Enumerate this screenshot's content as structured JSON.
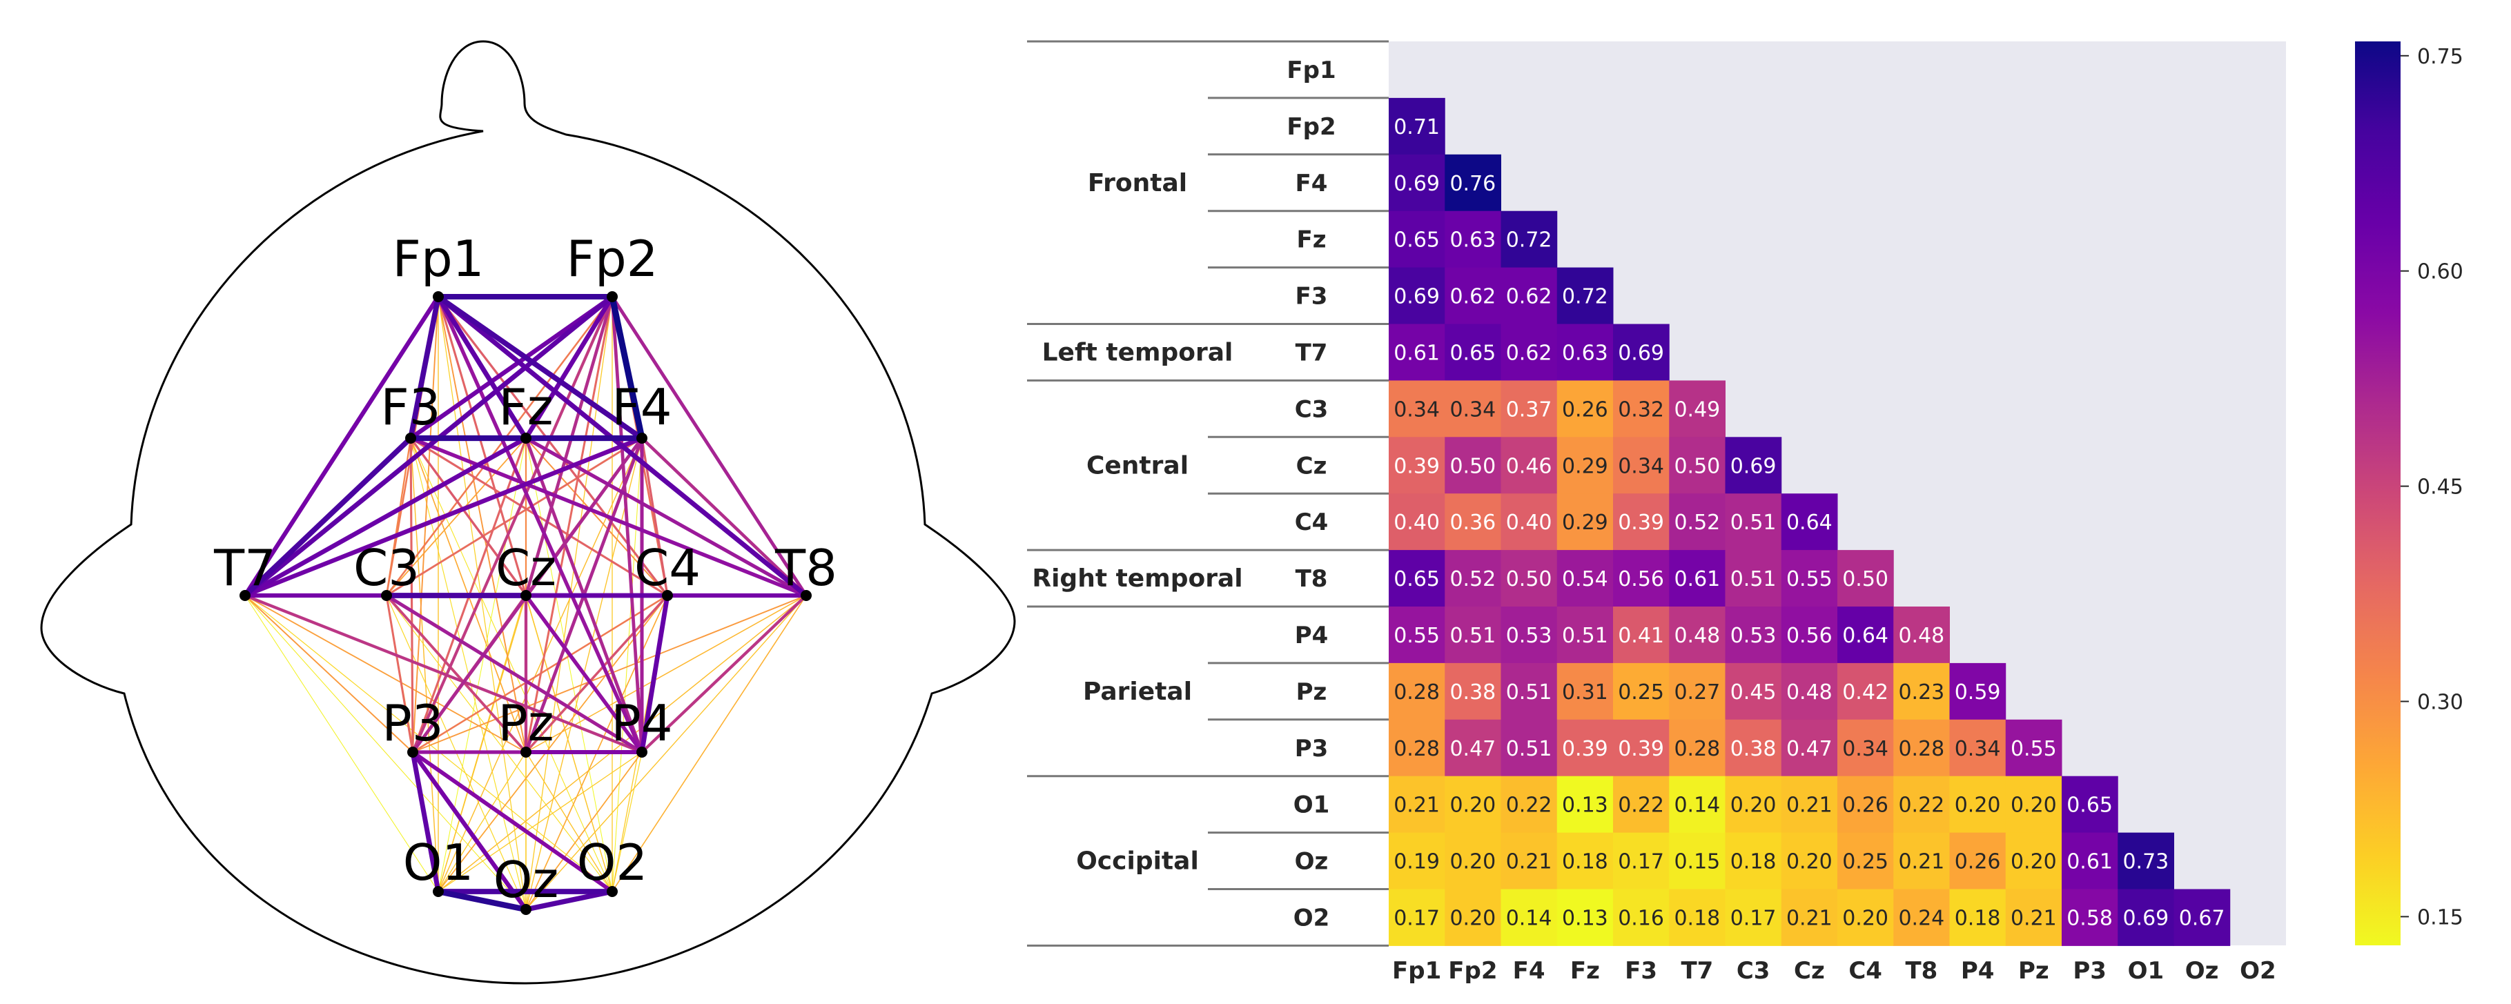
{
  "chart_data": [
    {
      "type": "network",
      "title": "",
      "nodes": [
        "Fp1",
        "Fp2",
        "F3",
        "Fz",
        "F4",
        "T7",
        "C3",
        "Cz",
        "C4",
        "T8",
        "P3",
        "Pz",
        "P4",
        "O1",
        "Oz",
        "O2"
      ],
      "edges_from": "heatmap values (line color and width encode connectivity strength)"
    },
    {
      "type": "heatmap",
      "title": "",
      "rows": [
        "Fp1",
        "Fp2",
        "F4",
        "Fz",
        "F3",
        "T7",
        "C3",
        "Cz",
        "C4",
        "T8",
        "P4",
        "Pz",
        "P3",
        "O1",
        "Oz",
        "O2"
      ],
      "columns": [
        "Fp1",
        "Fp2",
        "F4",
        "Fz",
        "F3",
        "T7",
        "C3",
        "Cz",
        "C4",
        "T8",
        "P4",
        "Pz",
        "P3",
        "O1",
        "Oz",
        "O2"
      ],
      "groups": [
        {
          "name": "Frontal",
          "rows": [
            "Fp1",
            "Fp2",
            "F4",
            "Fz",
            "F3"
          ]
        },
        {
          "name": "Left temporal",
          "rows": [
            "T7"
          ]
        },
        {
          "name": "Central",
          "rows": [
            "C3",
            "Cz",
            "C4"
          ]
        },
        {
          "name": "Right temporal",
          "rows": [
            "T8"
          ]
        },
        {
          "name": "Parietal",
          "rows": [
            "P4",
            "Pz",
            "P3"
          ]
        },
        {
          "name": "Occipital",
          "rows": [
            "O1",
            "Oz",
            "O2"
          ]
        }
      ],
      "values": [
        [],
        [
          0.71
        ],
        [
          0.69,
          0.76
        ],
        [
          0.65,
          0.63,
          0.72
        ],
        [
          0.69,
          0.62,
          0.62,
          0.72
        ],
        [
          0.61,
          0.65,
          0.62,
          0.63,
          0.69
        ],
        [
          0.34,
          0.34,
          0.37,
          0.26,
          0.32,
          0.49
        ],
        [
          0.39,
          0.5,
          0.46,
          0.29,
          0.34,
          0.5,
          0.69
        ],
        [
          0.4,
          0.36,
          0.4,
          0.29,
          0.39,
          0.52,
          0.51,
          0.64
        ],
        [
          0.65,
          0.52,
          0.5,
          0.54,
          0.56,
          0.61,
          0.51,
          0.55,
          0.5
        ],
        [
          0.55,
          0.51,
          0.53,
          0.51,
          0.41,
          0.48,
          0.53,
          0.56,
          0.64,
          0.48
        ],
        [
          0.28,
          0.38,
          0.51,
          0.31,
          0.25,
          0.27,
          0.45,
          0.48,
          0.42,
          0.23,
          0.59
        ],
        [
          0.28,
          0.47,
          0.51,
          0.39,
          0.39,
          0.28,
          0.38,
          0.47,
          0.34,
          0.28,
          0.34,
          0.55
        ],
        [
          0.21,
          0.2,
          0.22,
          0.13,
          0.22,
          0.14,
          0.2,
          0.21,
          0.26,
          0.22,
          0.2,
          0.2,
          0.65
        ],
        [
          0.19,
          0.2,
          0.21,
          0.18,
          0.17,
          0.15,
          0.18,
          0.2,
          0.25,
          0.21,
          0.26,
          0.2,
          0.61,
          0.73
        ],
        [
          0.17,
          0.2,
          0.14,
          0.13,
          0.16,
          0.18,
          0.17,
          0.21,
          0.2,
          0.24,
          0.18,
          0.21,
          0.58,
          0.69,
          0.67
        ]
      ],
      "colormap": "plasma_r",
      "vmin": 0.13,
      "vmax": 0.76,
      "colorbar_ticks": [
        0.15,
        0.3,
        0.45,
        0.6,
        0.75
      ],
      "colorbar_tick_labels": [
        "0.15",
        "0.30",
        "0.45",
        "0.60",
        "0.75"
      ]
    }
  ]
}
